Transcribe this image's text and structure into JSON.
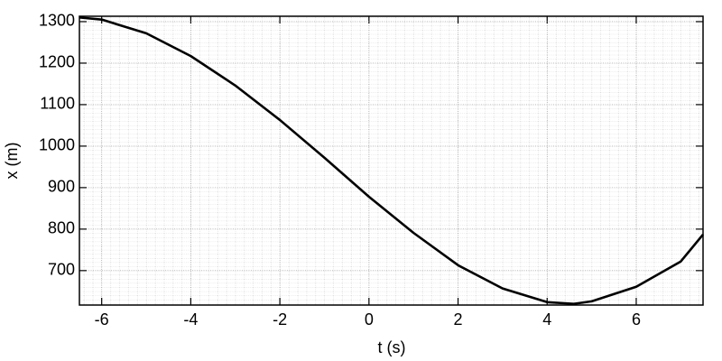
{
  "chart_data": {
    "type": "line",
    "x_label": "t (s)",
    "y_label": "x (m)",
    "x": [
      -6.5,
      -6,
      -5,
      -4,
      -3,
      -2,
      -1,
      0,
      1,
      2,
      3,
      4,
      4.6,
      5,
      6,
      7,
      7.5
    ],
    "series": [
      {
        "color": "#000000",
        "values": [
          1310,
          1305,
          1272,
          1217,
          1146,
          1063,
          972,
          878,
          791,
          713,
          657,
          624,
          620,
          626,
          661,
          722,
          787
        ]
      }
    ],
    "xlim": [
      -6.5,
      7.5
    ],
    "ylim": [
      617,
      1313
    ],
    "xticks": [
      -6,
      -4,
      -2,
      0,
      2,
      4,
      6
    ],
    "yticks": [
      700,
      800,
      900,
      1000,
      1100,
      1200,
      1300
    ],
    "grid": true
  }
}
